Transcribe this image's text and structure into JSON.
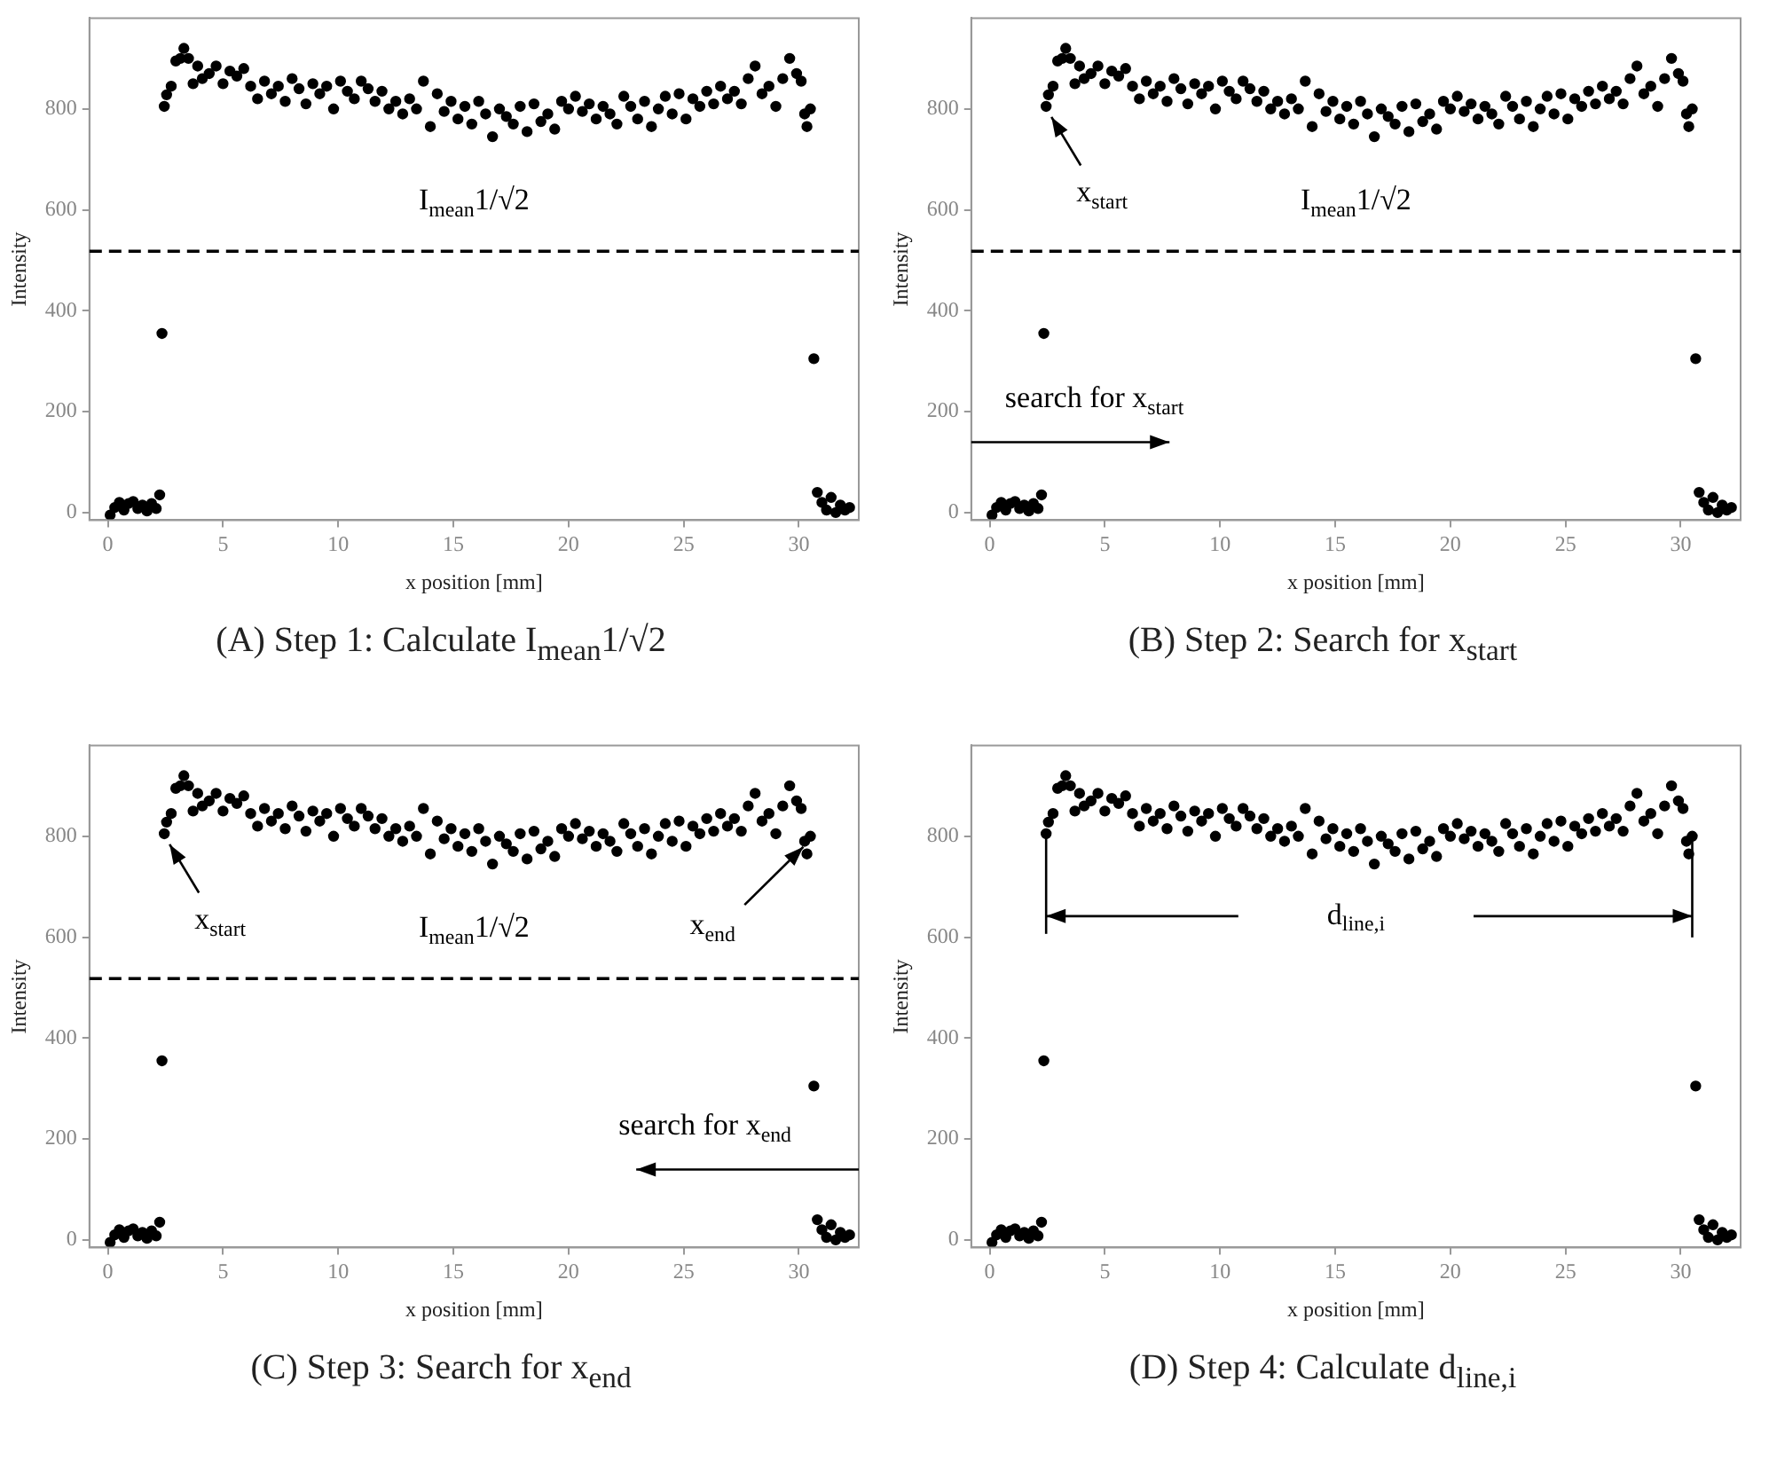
{
  "chart_data": [
    {
      "type": "scatter",
      "title": "(A) Step 1: Calculate I$_{mean}$1/√2",
      "xlabel": "x position [mm]",
      "ylabel": "Intensity",
      "marker": "circle",
      "grid": false,
      "legend": false,
      "xlim": [
        -0.8,
        32.6
      ],
      "ylim": [
        -15,
        980
      ],
      "xticks": [
        0,
        5,
        10,
        15,
        20,
        25,
        30
      ],
      "yticks": [
        0,
        200,
        400,
        600,
        800
      ],
      "ref_lines": [
        {
          "axis": "y",
          "value": 518,
          "label": "I$_{mean}$1/√2",
          "line_style": "dashed",
          "color": "#000000"
        }
      ],
      "series": [
        {
          "color": "#000000",
          "x": [
            0.1,
            0.3,
            0.5,
            0.7,
            0.9,
            1.1,
            1.3,
            1.5,
            1.7,
            1.9,
            2.1,
            2.25,
            2.35,
            2.45,
            2.55,
            2.75,
            2.95,
            3.15,
            3.3,
            3.5,
            3.7,
            3.9,
            4.1,
            4.4,
            4.7,
            5.0,
            5.3,
            5.6,
            5.9,
            6.2,
            6.5,
            6.8,
            7.1,
            7.4,
            7.7,
            8.0,
            8.3,
            8.6,
            8.9,
            9.2,
            9.5,
            9.8,
            10.1,
            10.4,
            10.7,
            11.0,
            11.3,
            11.6,
            11.9,
            12.2,
            12.5,
            12.8,
            13.1,
            13.4,
            13.7,
            14.0,
            14.3,
            14.6,
            14.9,
            15.2,
            15.5,
            15.8,
            16.1,
            16.4,
            16.7,
            17.0,
            17.3,
            17.6,
            17.9,
            18.2,
            18.5,
            18.8,
            19.1,
            19.4,
            19.7,
            20.0,
            20.3,
            20.6,
            20.9,
            21.2,
            21.5,
            21.8,
            22.1,
            22.4,
            22.7,
            23.0,
            23.3,
            23.6,
            23.9,
            24.2,
            24.5,
            24.8,
            25.1,
            25.4,
            25.7,
            26.0,
            26.3,
            26.6,
            26.9,
            27.2,
            27.5,
            27.8,
            28.1,
            28.4,
            28.7,
            29.0,
            29.3,
            29.6,
            29.9,
            30.1,
            30.25,
            30.35,
            30.5,
            30.65,
            30.8,
            31.0,
            31.2,
            31.4,
            31.6,
            31.8,
            32.0,
            32.2
          ],
          "values": [
            -5,
            10,
            20,
            5,
            18,
            22,
            8,
            15,
            3,
            18,
            8,
            35,
            355,
            805,
            828,
            845,
            895,
            900,
            920,
            900,
            850,
            885,
            860,
            870,
            885,
            850,
            875,
            865,
            880,
            845,
            820,
            855,
            830,
            845,
            815,
            860,
            840,
            810,
            850,
            830,
            845,
            800,
            855,
            835,
            820,
            855,
            840,
            815,
            835,
            800,
            815,
            790,
            820,
            800,
            855,
            765,
            830,
            795,
            815,
            780,
            805,
            770,
            815,
            790,
            745,
            800,
            785,
            770,
            805,
            755,
            810,
            775,
            790,
            760,
            815,
            800,
            825,
            795,
            810,
            780,
            805,
            790,
            770,
            825,
            805,
            780,
            815,
            765,
            800,
            825,
            790,
            830,
            780,
            820,
            805,
            835,
            810,
            845,
            820,
            835,
            810,
            860,
            885,
            830,
            845,
            805,
            860,
            900,
            870,
            855,
            790,
            765,
            800,
            305,
            40,
            20,
            5,
            30,
            0,
            15,
            5,
            10
          ]
        }
      ]
    },
    {
      "type": "scatter",
      "title": "(B) Step 2: Search for x$_{start}$",
      "xlabel": "x position [mm]",
      "ylabel": "Intensity",
      "marker": "circle",
      "grid": false,
      "legend": false,
      "xlim": [
        -0.8,
        32.6
      ],
      "ylim": [
        -15,
        980
      ],
      "xticks": [
        0,
        5,
        10,
        15,
        20,
        25,
        30
      ],
      "yticks": [
        0,
        200,
        400,
        600,
        800
      ],
      "ref_lines": [
        {
          "axis": "y",
          "value": 518,
          "label": "I$_{mean}$1/√2",
          "line_style": "dashed",
          "color": "#000000"
        }
      ],
      "annotations": [
        "x$_{start}$",
        "search for x$_{start}$"
      ],
      "series": [
        {
          "color": "#000000",
          "x": [
            0.1,
            0.3,
            0.5,
            0.7,
            0.9,
            1.1,
            1.3,
            1.5,
            1.7,
            1.9,
            2.1,
            2.25,
            2.35,
            2.45,
            2.55,
            2.75,
            2.95,
            3.15,
            3.3,
            3.5,
            3.7,
            3.9,
            4.1,
            4.4,
            4.7,
            5.0,
            5.3,
            5.6,
            5.9,
            6.2,
            6.5,
            6.8,
            7.1,
            7.4,
            7.7,
            8.0,
            8.3,
            8.6,
            8.9,
            9.2,
            9.5,
            9.8,
            10.1,
            10.4,
            10.7,
            11.0,
            11.3,
            11.6,
            11.9,
            12.2,
            12.5,
            12.8,
            13.1,
            13.4,
            13.7,
            14.0,
            14.3,
            14.6,
            14.9,
            15.2,
            15.5,
            15.8,
            16.1,
            16.4,
            16.7,
            17.0,
            17.3,
            17.6,
            17.9,
            18.2,
            18.5,
            18.8,
            19.1,
            19.4,
            19.7,
            20.0,
            20.3,
            20.6,
            20.9,
            21.2,
            21.5,
            21.8,
            22.1,
            22.4,
            22.7,
            23.0,
            23.3,
            23.6,
            23.9,
            24.2,
            24.5,
            24.8,
            25.1,
            25.4,
            25.7,
            26.0,
            26.3,
            26.6,
            26.9,
            27.2,
            27.5,
            27.8,
            28.1,
            28.4,
            28.7,
            29.0,
            29.3,
            29.6,
            29.9,
            30.1,
            30.25,
            30.35,
            30.5,
            30.65,
            30.8,
            31.0,
            31.2,
            31.4,
            31.6,
            31.8,
            32.0,
            32.2
          ],
          "values": [
            -5,
            10,
            20,
            5,
            18,
            22,
            8,
            15,
            3,
            18,
            8,
            35,
            355,
            805,
            828,
            845,
            895,
            900,
            920,
            900,
            850,
            885,
            860,
            870,
            885,
            850,
            875,
            865,
            880,
            845,
            820,
            855,
            830,
            845,
            815,
            860,
            840,
            810,
            850,
            830,
            845,
            800,
            855,
            835,
            820,
            855,
            840,
            815,
            835,
            800,
            815,
            790,
            820,
            800,
            855,
            765,
            830,
            795,
            815,
            780,
            805,
            770,
            815,
            790,
            745,
            800,
            785,
            770,
            805,
            755,
            810,
            775,
            790,
            760,
            815,
            800,
            825,
            795,
            810,
            780,
            805,
            790,
            770,
            825,
            805,
            780,
            815,
            765,
            800,
            825,
            790,
            830,
            780,
            820,
            805,
            835,
            810,
            845,
            820,
            835,
            810,
            860,
            885,
            830,
            845,
            805,
            860,
            900,
            870,
            855,
            790,
            765,
            800,
            305,
            40,
            20,
            5,
            30,
            0,
            15,
            5,
            10
          ]
        }
      ]
    },
    {
      "type": "scatter",
      "title": "(C) Step 3: Search for x$_{end}$",
      "xlabel": "x position [mm]",
      "ylabel": "Intensity",
      "marker": "circle",
      "grid": false,
      "legend": false,
      "xlim": [
        -0.8,
        32.6
      ],
      "ylim": [
        -15,
        980
      ],
      "xticks": [
        0,
        5,
        10,
        15,
        20,
        25,
        30
      ],
      "yticks": [
        0,
        200,
        400,
        600,
        800
      ],
      "ref_lines": [
        {
          "axis": "y",
          "value": 518,
          "label": "I$_{mean}$1/√2",
          "line_style": "dashed",
          "color": "#000000"
        }
      ],
      "annotations": [
        "x$_{start}$",
        "x$_{end}$",
        "search for x$_{end}$"
      ],
      "series": [
        {
          "color": "#000000",
          "x": [
            0.1,
            0.3,
            0.5,
            0.7,
            0.9,
            1.1,
            1.3,
            1.5,
            1.7,
            1.9,
            2.1,
            2.25,
            2.35,
            2.45,
            2.55,
            2.75,
            2.95,
            3.15,
            3.3,
            3.5,
            3.7,
            3.9,
            4.1,
            4.4,
            4.7,
            5.0,
            5.3,
            5.6,
            5.9,
            6.2,
            6.5,
            6.8,
            7.1,
            7.4,
            7.7,
            8.0,
            8.3,
            8.6,
            8.9,
            9.2,
            9.5,
            9.8,
            10.1,
            10.4,
            10.7,
            11.0,
            11.3,
            11.6,
            11.9,
            12.2,
            12.5,
            12.8,
            13.1,
            13.4,
            13.7,
            14.0,
            14.3,
            14.6,
            14.9,
            15.2,
            15.5,
            15.8,
            16.1,
            16.4,
            16.7,
            17.0,
            17.3,
            17.6,
            17.9,
            18.2,
            18.5,
            18.8,
            19.1,
            19.4,
            19.7,
            20.0,
            20.3,
            20.6,
            20.9,
            21.2,
            21.5,
            21.8,
            22.1,
            22.4,
            22.7,
            23.0,
            23.3,
            23.6,
            23.9,
            24.2,
            24.5,
            24.8,
            25.1,
            25.4,
            25.7,
            26.0,
            26.3,
            26.6,
            26.9,
            27.2,
            27.5,
            27.8,
            28.1,
            28.4,
            28.7,
            29.0,
            29.3,
            29.6,
            29.9,
            30.1,
            30.25,
            30.35,
            30.5,
            30.65,
            30.8,
            31.0,
            31.2,
            31.4,
            31.6,
            31.8,
            32.0,
            32.2
          ],
          "values": [
            -5,
            10,
            20,
            5,
            18,
            22,
            8,
            15,
            3,
            18,
            8,
            35,
            355,
            805,
            828,
            845,
            895,
            900,
            920,
            900,
            850,
            885,
            860,
            870,
            885,
            850,
            875,
            865,
            880,
            845,
            820,
            855,
            830,
            845,
            815,
            860,
            840,
            810,
            850,
            830,
            845,
            800,
            855,
            835,
            820,
            855,
            840,
            815,
            835,
            800,
            815,
            790,
            820,
            800,
            855,
            765,
            830,
            795,
            815,
            780,
            805,
            770,
            815,
            790,
            745,
            800,
            785,
            770,
            805,
            755,
            810,
            775,
            790,
            760,
            815,
            800,
            825,
            795,
            810,
            780,
            805,
            790,
            770,
            825,
            805,
            780,
            815,
            765,
            800,
            825,
            790,
            830,
            780,
            820,
            805,
            835,
            810,
            845,
            820,
            835,
            810,
            860,
            885,
            830,
            845,
            805,
            860,
            900,
            870,
            855,
            790,
            765,
            800,
            305,
            40,
            20,
            5,
            30,
            0,
            15,
            5,
            10
          ]
        }
      ]
    },
    {
      "type": "scatter",
      "title": "(D) Step 4: Calculate d$_{line,i}$",
      "xlabel": "x position [mm]",
      "ylabel": "Intensity",
      "marker": "circle",
      "grid": false,
      "legend": false,
      "xlim": [
        -0.8,
        32.6
      ],
      "ylim": [
        -15,
        980
      ],
      "xticks": [
        0,
        5,
        10,
        15,
        20,
        25,
        30
      ],
      "yticks": [
        0,
        200,
        400,
        600,
        800
      ],
      "annotations": [
        "d$_{line,i}$"
      ],
      "series": [
        {
          "color": "#000000",
          "x": [
            0.1,
            0.3,
            0.5,
            0.7,
            0.9,
            1.1,
            1.3,
            1.5,
            1.7,
            1.9,
            2.1,
            2.25,
            2.35,
            2.45,
            2.55,
            2.75,
            2.95,
            3.15,
            3.3,
            3.5,
            3.7,
            3.9,
            4.1,
            4.4,
            4.7,
            5.0,
            5.3,
            5.6,
            5.9,
            6.2,
            6.5,
            6.8,
            7.1,
            7.4,
            7.7,
            8.0,
            8.3,
            8.6,
            8.9,
            9.2,
            9.5,
            9.8,
            10.1,
            10.4,
            10.7,
            11.0,
            11.3,
            11.6,
            11.9,
            12.2,
            12.5,
            12.8,
            13.1,
            13.4,
            13.7,
            14.0,
            14.3,
            14.6,
            14.9,
            15.2,
            15.5,
            15.8,
            16.1,
            16.4,
            16.7,
            17.0,
            17.3,
            17.6,
            17.9,
            18.2,
            18.5,
            18.8,
            19.1,
            19.4,
            19.7,
            20.0,
            20.3,
            20.6,
            20.9,
            21.2,
            21.5,
            21.8,
            22.1,
            22.4,
            22.7,
            23.0,
            23.3,
            23.6,
            23.9,
            24.2,
            24.5,
            24.8,
            25.1,
            25.4,
            25.7,
            26.0,
            26.3,
            26.6,
            26.9,
            27.2,
            27.5,
            27.8,
            28.1,
            28.4,
            28.7,
            29.0,
            29.3,
            29.6,
            29.9,
            30.1,
            30.25,
            30.35,
            30.5,
            30.65,
            30.8,
            31.0,
            31.2,
            31.4,
            31.6,
            31.8,
            32.0,
            32.2
          ],
          "values": [
            -5,
            10,
            20,
            5,
            18,
            22,
            8,
            15,
            3,
            18,
            8,
            35,
            355,
            805,
            828,
            845,
            895,
            900,
            920,
            900,
            850,
            885,
            860,
            870,
            885,
            850,
            875,
            865,
            880,
            845,
            820,
            855,
            830,
            845,
            815,
            860,
            840,
            810,
            850,
            830,
            845,
            800,
            855,
            835,
            820,
            855,
            840,
            815,
            835,
            800,
            815,
            790,
            820,
            800,
            855,
            765,
            830,
            795,
            815,
            780,
            805,
            770,
            815,
            790,
            745,
            800,
            785,
            770,
            805,
            755,
            810,
            775,
            790,
            760,
            815,
            800,
            825,
            795,
            810,
            780,
            805,
            790,
            770,
            825,
            805,
            780,
            815,
            765,
            800,
            825,
            790,
            830,
            780,
            820,
            805,
            835,
            810,
            845,
            820,
            835,
            810,
            860,
            885,
            830,
            845,
            805,
            860,
            900,
            870,
            855,
            790,
            765,
            800,
            305,
            40,
            20,
            5,
            30,
            0,
            15,
            5,
            10
          ]
        }
      ]
    }
  ]
}
